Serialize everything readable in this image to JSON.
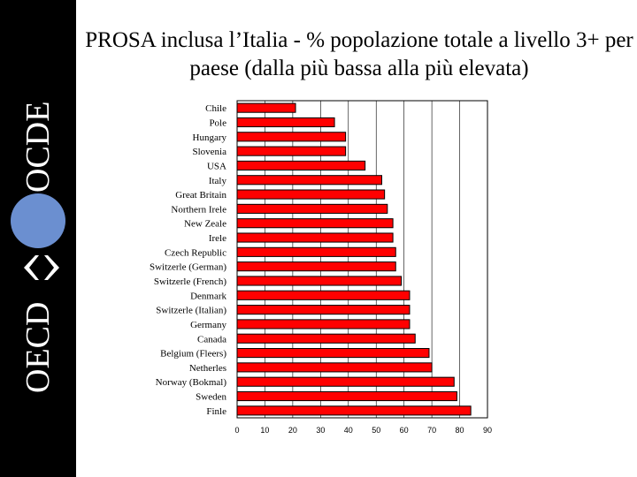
{
  "logo": {
    "text_left": "OECD",
    "text_right": "OCDE"
  },
  "colors": {
    "bar_fill": "#ff0000",
    "bar_stroke": "#000000",
    "sidebar": "#000000",
    "logo_circle": "#6b8fd0"
  },
  "chart_data": {
    "type": "bar",
    "orientation": "horizontal",
    "title": "PROSA inclusa l’Italia - % popolazione totale a livello 3+ per paese (dalla più bassa alla più elevata)",
    "categories": [
      "Chile",
      "Pole",
      "Hungary",
      "Slovenia",
      "USA",
      "Italy",
      "Great Britain",
      "Northern Irele",
      "New Zeale",
      "Irele",
      "Czech Republic",
      "Switzerle (German)",
      "Switzerle (French)",
      "Denmark",
      "Switzerle (Italian)",
      "Germany",
      "Canada",
      "Belgium (Fleers)",
      "Netherles",
      "Norway (Bokmal)",
      "Sweden",
      "Finle"
    ],
    "values": [
      21,
      35,
      39,
      39,
      46,
      52,
      53,
      54,
      56,
      56,
      57,
      57,
      59,
      62,
      62,
      62,
      64,
      69,
      70,
      78,
      79,
      84
    ],
    "xlim": [
      0,
      90
    ],
    "xticks": [
      "0",
      "10",
      "20",
      "30",
      "40",
      "50",
      "60",
      "70",
      "80",
      "90"
    ],
    "grid": "vertical"
  }
}
